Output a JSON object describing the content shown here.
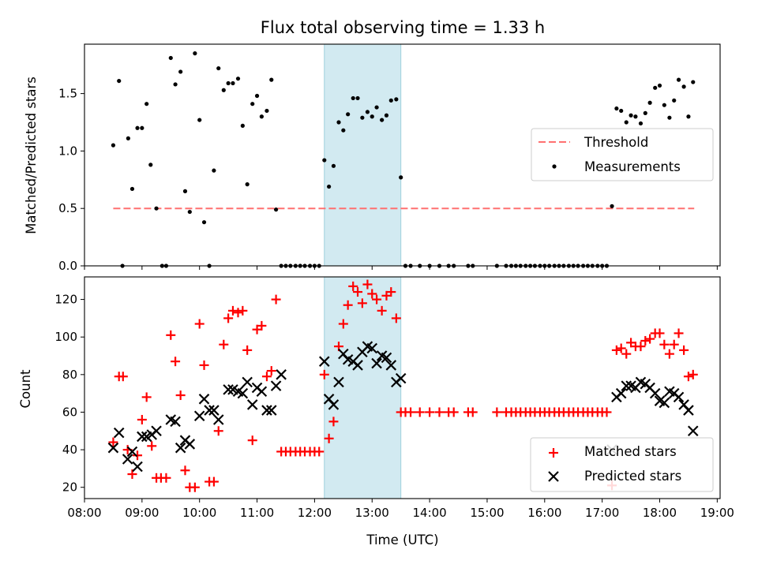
{
  "chart_data": {
    "type": "scatter",
    "title": "Flux total observing time = 1.33 h",
    "xlabel": "Time (UTC)",
    "x_tick_labels": [
      "08:00",
      "09:00",
      "10:00",
      "11:00",
      "12:00",
      "13:00",
      "14:00",
      "15:00",
      "16:00",
      "17:00",
      "18:00",
      "19:00"
    ],
    "x_tick_hours": [
      8,
      9,
      10,
      11,
      12,
      13,
      14,
      15,
      16,
      17,
      18,
      19
    ],
    "xlim_hours": [
      8.0,
      19.05
    ],
    "highlight_span_hours": [
      12.17,
      13.5
    ],
    "highlight_color": "#add8e6",
    "top_panel": {
      "ylabel": "Matched/Predicted stars",
      "ylim": [
        0,
        1.93
      ],
      "yticks": [
        0,
        0.5,
        1.0,
        1.5
      ],
      "ytick_labels": [
        "0.0",
        "0.5",
        "1.0",
        "1.5"
      ],
      "legend_position": "center-right",
      "threshold": {
        "name": "Threshold",
        "value": 0.5,
        "x_range_hours": [
          8.5,
          18.6
        ],
        "color": "#ff7070"
      },
      "measurements": {
        "name": "Measurements",
        "color": "#000000",
        "x": [
          8.5,
          8.6,
          8.66,
          8.76,
          8.83,
          8.92,
          9.0,
          9.08,
          9.15,
          9.25,
          9.35,
          9.42,
          9.5,
          9.58,
          9.67,
          9.75,
          9.83,
          9.92,
          10.0,
          10.08,
          10.17,
          10.25,
          10.33,
          10.42,
          10.5,
          10.58,
          10.67,
          10.75,
          10.83,
          10.92,
          11.0,
          11.08,
          11.17,
          11.25,
          11.33,
          11.42,
          11.5,
          11.58,
          11.67,
          11.75,
          11.83,
          11.92,
          12.0,
          12.08,
          12.17,
          12.25,
          12.33,
          12.42,
          12.5,
          12.58,
          12.67,
          12.75,
          12.83,
          12.92,
          13.0,
          13.08,
          13.17,
          13.25,
          13.33,
          13.42,
          13.5,
          13.58,
          13.67,
          13.83,
          14.0,
          14.17,
          14.33,
          14.42,
          14.67,
          14.75,
          15.17,
          15.33,
          15.42,
          15.5,
          15.58,
          15.67,
          15.75,
          15.83,
          15.92,
          16.0,
          16.08,
          16.17,
          16.25,
          16.33,
          16.42,
          16.5,
          16.58,
          16.67,
          16.75,
          16.83,
          16.92,
          17.0,
          17.08,
          17.17,
          17.25,
          17.33,
          17.42,
          17.5,
          17.58,
          17.67,
          17.75,
          17.83,
          17.92,
          18.0,
          18.08,
          18.17,
          18.25,
          18.33,
          18.42,
          18.5,
          18.58
        ],
        "y": [
          1.05,
          1.61,
          0,
          1.11,
          0.67,
          1.2,
          1.2,
          1.41,
          0.88,
          0.5,
          0,
          0,
          1.81,
          1.58,
          1.69,
          0.65,
          0.47,
          1.85,
          1.27,
          0.38,
          0,
          0.83,
          1.72,
          1.53,
          1.59,
          1.59,
          1.63,
          1.22,
          0.71,
          1.41,
          1.48,
          1.3,
          1.35,
          1.62,
          0.49,
          0,
          0,
          0,
          0,
          0,
          0,
          0,
          0,
          0,
          0.92,
          0.69,
          0.87,
          1.25,
          1.18,
          1.32,
          1.46,
          1.46,
          1.29,
          1.34,
          1.3,
          1.38,
          1.27,
          1.31,
          1.44,
          1.45,
          0.77,
          0,
          0,
          0,
          0,
          0,
          0,
          0,
          0,
          0,
          0,
          0,
          0,
          0,
          0,
          0,
          0,
          0,
          0,
          0,
          0,
          0,
          0,
          0,
          0,
          0,
          0,
          0,
          0,
          0,
          0,
          0,
          0,
          0.52,
          1.37,
          1.35,
          1.25,
          1.31,
          1.3,
          1.24,
          1.33,
          1.42,
          1.55,
          1.57,
          1.4,
          1.29,
          1.44,
          1.62,
          1.56,
          1.3,
          1.6
        ]
      }
    },
    "bottom_panel": {
      "ylabel": "Count",
      "ylim": [
        14,
        132
      ],
      "yticks": [
        20,
        40,
        60,
        80,
        100,
        120
      ],
      "ytick_labels": [
        "20",
        "40",
        "60",
        "80",
        "100",
        "120"
      ],
      "legend_position": "lower-right",
      "matched": {
        "name": "Matched stars",
        "color": "#ff0000",
        "x": [
          8.5,
          8.6,
          8.67,
          8.75,
          8.83,
          8.92,
          9.0,
          9.08,
          9.17,
          9.25,
          9.33,
          9.42,
          9.5,
          9.58,
          9.67,
          9.75,
          9.83,
          9.92,
          10.0,
          10.08,
          10.17,
          10.25,
          10.33,
          10.42,
          10.5,
          10.58,
          10.67,
          10.75,
          10.83,
          10.92,
          11.0,
          11.08,
          11.17,
          11.25,
          11.33,
          11.42,
          11.5,
          11.58,
          11.67,
          11.75,
          11.83,
          11.92,
          12.0,
          12.08,
          12.17,
          12.25,
          12.33,
          12.42,
          12.5,
          12.58,
          12.67,
          12.75,
          12.83,
          12.92,
          13.0,
          13.08,
          13.17,
          13.25,
          13.33,
          13.42,
          13.5,
          13.58,
          13.67,
          13.83,
          14.0,
          14.17,
          14.33,
          14.42,
          14.67,
          14.75,
          15.17,
          15.33,
          15.42,
          15.5,
          15.58,
          15.67,
          15.75,
          15.83,
          15.92,
          16.0,
          16.08,
          16.17,
          16.25,
          16.33,
          16.42,
          16.5,
          16.58,
          16.67,
          16.75,
          16.83,
          16.92,
          17.0,
          17.08,
          17.17,
          17.25,
          17.33,
          17.42,
          17.5,
          17.58,
          17.67,
          17.75,
          17.83,
          17.92,
          18.0,
          18.08,
          18.17,
          18.25,
          18.33,
          18.42,
          18.5,
          18.58
        ],
        "y": [
          44,
          79,
          79,
          40,
          27,
          37,
          56,
          68,
          42,
          25,
          25,
          25,
          101,
          87,
          69,
          29,
          20,
          20,
          107,
          85,
          23,
          23,
          50,
          96,
          110,
          114,
          113,
          114,
          93,
          45,
          104,
          106,
          79,
          82,
          120,
          39,
          39,
          39,
          39,
          39,
          39,
          39,
          39,
          39,
          80,
          46,
          55,
          95,
          107,
          117,
          127,
          124,
          118,
          128,
          123,
          120,
          114,
          122,
          124,
          110,
          60,
          60,
          60,
          60,
          60,
          60,
          60,
          60,
          60,
          60,
          60,
          60,
          60,
          60,
          60,
          60,
          60,
          60,
          60,
          60,
          60,
          60,
          60,
          60,
          60,
          60,
          60,
          60,
          60,
          60,
          60,
          60,
          60,
          21,
          93,
          94,
          91,
          97,
          95,
          95,
          98,
          99,
          102,
          102,
          96,
          91,
          96,
          102,
          93,
          79,
          80
        ]
      },
      "predicted": {
        "name": "Predicted stars",
        "color": "#000000",
        "x": [
          8.5,
          8.6,
          8.75,
          8.83,
          8.92,
          9.0,
          9.08,
          9.17,
          9.25,
          9.5,
          9.58,
          9.67,
          9.75,
          9.83,
          10.0,
          10.08,
          10.17,
          10.25,
          10.33,
          10.5,
          10.58,
          10.67,
          10.75,
          10.83,
          10.92,
          11.0,
          11.08,
          11.17,
          11.25,
          11.33,
          11.42,
          12.17,
          12.25,
          12.33,
          12.42,
          12.5,
          12.58,
          12.67,
          12.75,
          12.83,
          12.92,
          13.0,
          13.08,
          13.17,
          13.25,
          13.33,
          13.42,
          13.5,
          17.17,
          17.25,
          17.33,
          17.42,
          17.5,
          17.58,
          17.67,
          17.75,
          17.83,
          17.92,
          18.0,
          18.08,
          18.17,
          18.25,
          18.33,
          18.42,
          18.5,
          18.58
        ],
        "y": [
          41,
          49,
          35,
          39,
          31,
          47,
          47,
          48,
          50,
          56,
          55,
          41,
          45,
          43,
          58,
          67,
          61,
          61,
          56,
          72,
          72,
          71,
          70,
          76,
          64,
          73,
          71,
          61,
          61,
          74,
          80,
          87,
          67,
          64,
          76,
          91,
          88,
          87,
          85,
          92,
          95,
          94,
          86,
          90,
          89,
          85,
          76,
          78,
          40,
          68,
          70,
          74,
          74,
          73,
          76,
          75,
          73,
          70,
          66,
          65,
          71,
          70,
          68,
          64,
          61,
          50
        ]
      }
    }
  }
}
